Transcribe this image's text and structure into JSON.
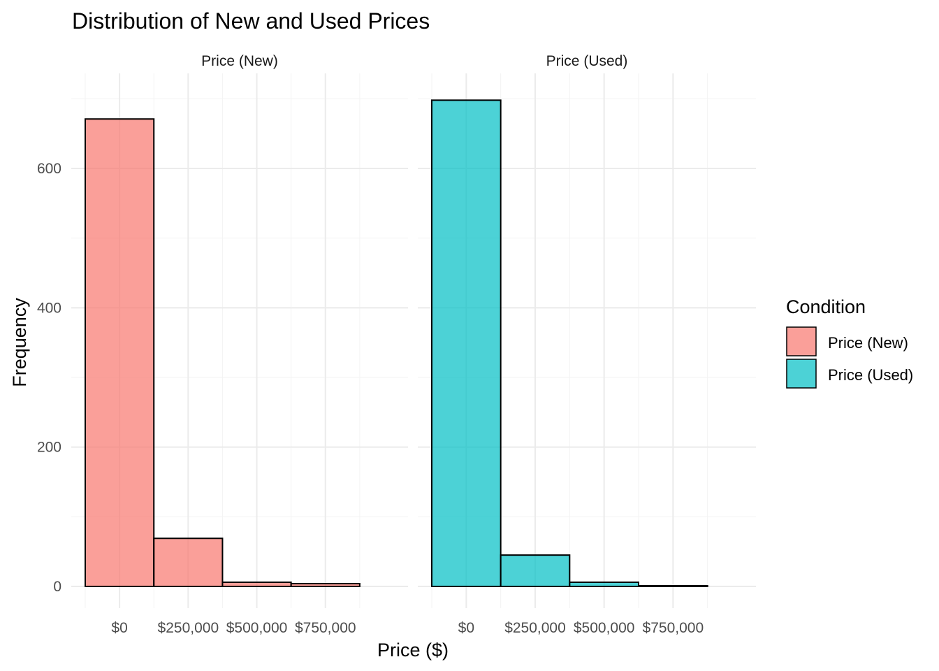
{
  "chart_data": {
    "type": "bar",
    "title": "Distribution of New and Used Prices",
    "xlabel": "Price ($)",
    "ylabel": "Frequency",
    "x_ticks": [
      "$0",
      "$250,000",
      "$500,000",
      "$750,000"
    ],
    "x_tick_values": [
      0,
      250000,
      500000,
      750000
    ],
    "y_ticks": [
      "0",
      "200",
      "400",
      "600"
    ],
    "y_tick_values": [
      0,
      200,
      400,
      600
    ],
    "xlim": [
      -125000,
      1000000
    ],
    "ylim": [
      0,
      700
    ],
    "bin_width": 250000,
    "bin_centers": [
      0,
      250000,
      500000,
      750000
    ],
    "grid": true,
    "legend_position": "right",
    "legend_title": "Condition",
    "panels": [
      {
        "name": "Price (New)",
        "color": "#F8766D",
        "values": [
          671,
          69,
          6,
          4
        ]
      },
      {
        "name": "Price (Used)",
        "color": "#00BFC4",
        "values": [
          698,
          45,
          6,
          1
        ]
      }
    ]
  }
}
